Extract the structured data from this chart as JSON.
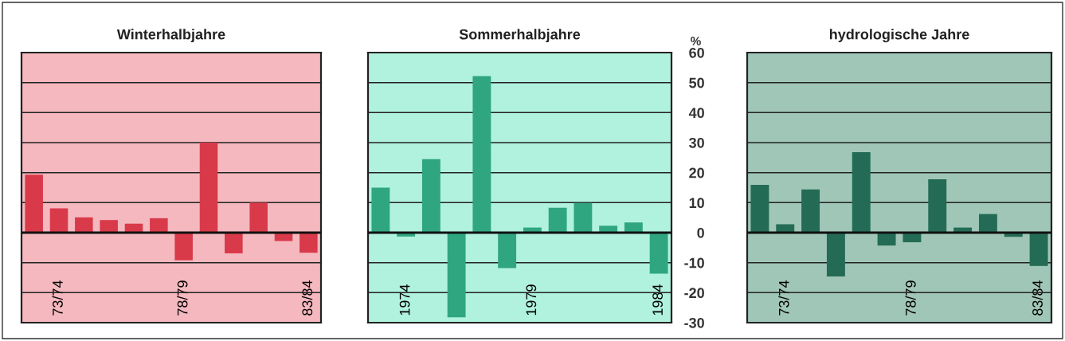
{
  "chart_data": [
    {
      "type": "bar",
      "title": "Winterhalbjahre",
      "categories": [
        null,
        "73/74",
        null,
        null,
        null,
        null,
        "78/79",
        null,
        null,
        null,
        null,
        "83/84"
      ],
      "values": [
        19.3,
        8.1,
        5.1,
        4.2,
        3.0,
        4.8,
        -9.2,
        30.0,
        -6.9,
        10.0,
        -2.8,
        -6.7
      ],
      "color": "#d93a4a",
      "ylim": [
        -30,
        60
      ],
      "yticks": [
        -30,
        -20,
        -10,
        0,
        10,
        20,
        30,
        40,
        50,
        60
      ],
      "grid": "y",
      "tick_labels": "x",
      "ref_lines": [
        {
          "axis": "y",
          "value": 0
        }
      ]
    },
    {
      "type": "bar",
      "title": "Sommerhalbjahre",
      "ylabel": "%",
      "categories": [
        null,
        "1974",
        null,
        null,
        null,
        null,
        "1979",
        null,
        null,
        null,
        null,
        "1984"
      ],
      "values": [
        15.0,
        -1.3,
        24.5,
        -28.2,
        52.2,
        -11.8,
        1.7,
        8.3,
        9.9,
        2.3,
        3.4,
        -13.7
      ],
      "color": "#2fa67f",
      "ylim": [
        -30,
        60
      ],
      "yticks": [
        -30,
        -20,
        -10,
        0,
        10,
        20,
        30,
        40,
        50,
        60
      ],
      "grid": "y",
      "ref_lines": [
        {
          "axis": "y",
          "value": 0
        }
      ]
    },
    {
      "type": "bar",
      "title": "hydrologische Jahre",
      "categories": [
        null,
        "73/74",
        null,
        null,
        null,
        null,
        "78/79",
        null,
        null,
        null,
        null,
        "83/84"
      ],
      "values": [
        15.9,
        2.8,
        14.4,
        -14.6,
        26.8,
        -4.3,
        -3.2,
        17.8,
        1.7,
        6.2,
        -1.4,
        -11.1
      ],
      "color": "#246b55",
      "ylim": [
        -30,
        60
      ],
      "yticks": [
        -30,
        -20,
        -10,
        0,
        10,
        20,
        30,
        40,
        50,
        60
      ],
      "grid": "y",
      "tick_labels": "x",
      "ref_lines": [
        {
          "axis": "y",
          "value": 0
        }
      ]
    }
  ]
}
